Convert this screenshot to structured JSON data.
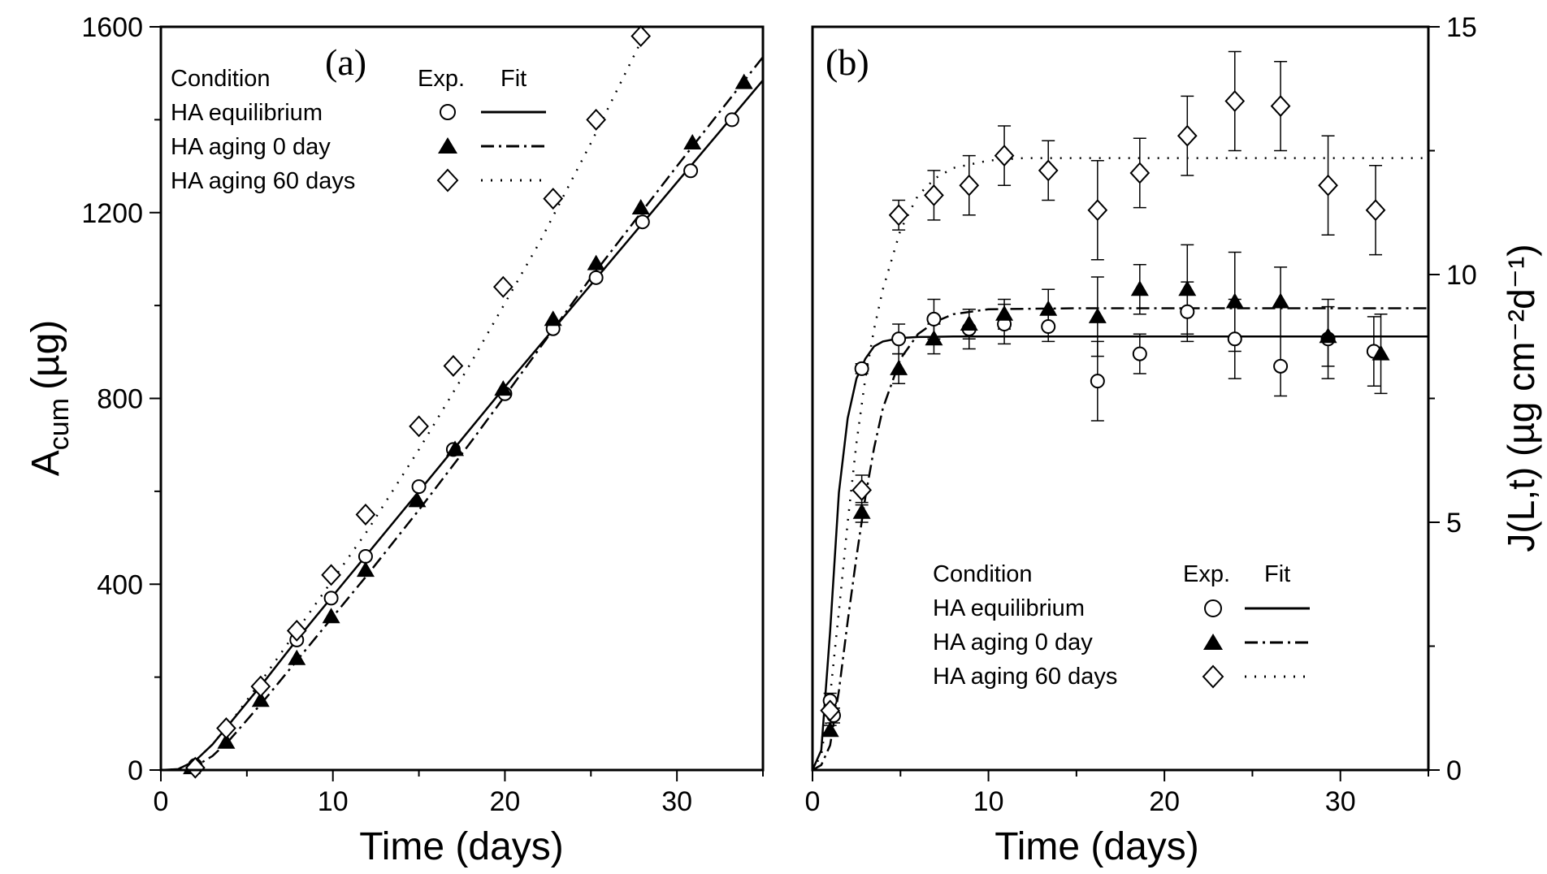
{
  "figure": {
    "panel_labels": [
      "(a)",
      "(b)"
    ]
  },
  "legend_a": {
    "title": "Condition",
    "col_exp": "Exp.",
    "col_fit": "Fit",
    "entries": [
      "HA equilibrium",
      "HA aging 0 day",
      "HA aging 60 days"
    ]
  },
  "legend_b": {
    "title": "Condition",
    "col_exp": "Exp.",
    "col_fit": "Fit",
    "entries": [
      "HA equilibrium",
      "HA aging 0 day",
      "HA aging 60 days"
    ]
  },
  "chart_data": [
    {
      "type": "scatter",
      "panel": "(a)",
      "xlabel": "Time (days)",
      "ylabel": "A",
      "ylabel_sub": "cum",
      "ylabel_unit": "(µg)",
      "xlim": [
        0,
        35
      ],
      "ylim": [
        0,
        1600
      ],
      "xticks": [
        0,
        10,
        20,
        30
      ],
      "yticks": [
        0,
        400,
        800,
        1200,
        1600
      ],
      "legend_position": "top-left",
      "series": [
        {
          "name": "HA equilibrium",
          "marker": "circle-open",
          "line": "solid",
          "x": [
            2,
            3.8,
            5.8,
            7.9,
            9.9,
            11.9,
            15,
            17,
            20,
            22.8,
            25.3,
            28,
            30.8,
            33.2
          ],
          "y": [
            10,
            90,
            180,
            280,
            370,
            460,
            610,
            690,
            810,
            950,
            1060,
            1180,
            1290,
            1400
          ],
          "fit_x": [
            0,
            1,
            2,
            3,
            4,
            6,
            8,
            10,
            12,
            15,
            18,
            20,
            25,
            30,
            35
          ],
          "fit_y": [
            0,
            2,
            20,
            55,
            100,
            190,
            285,
            375,
            465,
            600,
            735,
            825,
            1045,
            1265,
            1485
          ]
        },
        {
          "name": "HA aging 0 day",
          "marker": "triangle-filled",
          "line": "dashdot",
          "x": [
            1.8,
            3.8,
            5.8,
            7.9,
            9.9,
            11.9,
            14.9,
            17.1,
            19.9,
            22.8,
            25.3,
            27.9,
            30.9,
            33.9
          ],
          "y": [
            5,
            60,
            150,
            240,
            330,
            430,
            580,
            690,
            820,
            970,
            1090,
            1210,
            1350,
            1480
          ],
          "fit_x": [
            0,
            1,
            2,
            3,
            4,
            6,
            8,
            10,
            12,
            15,
            18,
            20,
            25,
            30,
            35
          ],
          "fit_y": [
            0,
            0,
            8,
            30,
            65,
            150,
            240,
            330,
            420,
            560,
            705,
            805,
            1060,
            1300,
            1535
          ]
        },
        {
          "name": "HA aging 60 days",
          "marker": "diamond-open",
          "line": "dotted",
          "x": [
            2,
            3.8,
            5.8,
            7.9,
            9.9,
            11.9,
            15,
            17,
            19.9,
            22.8,
            25.3,
            27.9
          ],
          "y": [
            5,
            90,
            180,
            300,
            420,
            550,
            740,
            870,
            1040,
            1230,
            1400,
            1580
          ],
          "fit_x": [
            0,
            1,
            2,
            3,
            4,
            6,
            8,
            10,
            12,
            15,
            18,
            20,
            22,
            25,
            28
          ],
          "fit_y": [
            0,
            2,
            20,
            55,
            100,
            200,
            305,
            410,
            515,
            690,
            875,
            1005,
            1135,
            1350,
            1575
          ]
        }
      ]
    },
    {
      "type": "scatter",
      "panel": "(b)",
      "xlabel": "Time (days)",
      "ylabel": "J(L,t) (µg cm⁻²d⁻¹)",
      "xlim": [
        0,
        35
      ],
      "ylim": [
        0,
        15
      ],
      "xticks": [
        0,
        10,
        20,
        30
      ],
      "yticks": [
        0,
        5,
        10,
        15
      ],
      "y_axis_side": "right",
      "legend_position": "bottom-right",
      "series": [
        {
          "name": "HA equilibrium",
          "marker": "circle-open",
          "line": "solid",
          "x": [
            1,
            1.2,
            2.8,
            4.9,
            6.9,
            8.9,
            10.9,
            13.4,
            16.2,
            18.6,
            21.3,
            24,
            26.6,
            29.3,
            31.9
          ],
          "y": [
            1.4,
            1.1,
            8.1,
            8.7,
            9.1,
            8.9,
            9.0,
            8.95,
            7.85,
            8.4,
            9.25,
            8.7,
            8.15,
            8.7,
            8.45
          ],
          "err": [
            0.15,
            0.15,
            0.1,
            0.3,
            0.4,
            0.4,
            0.4,
            0.3,
            0.8,
            0.4,
            0.6,
            0.8,
            0.6,
            0.8,
            0.7
          ],
          "fit_x": [
            0,
            0.5,
            1,
            1.5,
            2,
            2.5,
            3,
            3.5,
            4,
            5,
            6,
            8,
            10,
            20,
            35
          ],
          "fit_y": [
            0,
            0.4,
            2.8,
            5.6,
            7.1,
            7.9,
            8.3,
            8.55,
            8.65,
            8.72,
            8.74,
            8.75,
            8.75,
            8.75,
            8.75
          ]
        },
        {
          "name": "HA aging 0 day",
          "marker": "triangle-filled",
          "line": "dashdot",
          "x": [
            1,
            2.8,
            4.9,
            6.9,
            8.9,
            10.9,
            13.4,
            16.2,
            18.6,
            21.3,
            24,
            26.6,
            29.3,
            32.3
          ],
          "y": [
            0.8,
            5.2,
            8.1,
            8.7,
            9.0,
            9.2,
            9.3,
            9.15,
            9.7,
            9.7,
            9.45,
            9.45,
            8.75,
            8.4
          ],
          "err": [
            0.1,
            0.2,
            0.3,
            0.3,
            0.3,
            0.3,
            0.4,
            0.8,
            0.5,
            0.9,
            1.0,
            0.7,
            0.6,
            0.8
          ],
          "fit_x": [
            0,
            0.5,
            1,
            1.5,
            2,
            2.5,
            3,
            3.5,
            4,
            5,
            6,
            7,
            8,
            10,
            15,
            20,
            35
          ],
          "fit_y": [
            0,
            0.1,
            0.5,
            1.6,
            3.0,
            4.3,
            5.5,
            6.5,
            7.3,
            8.3,
            8.8,
            9.05,
            9.2,
            9.3,
            9.32,
            9.32,
            9.32
          ]
        },
        {
          "name": "HA aging 60 days",
          "marker": "diamond-open",
          "line": "dotted",
          "x": [
            1,
            2.8,
            4.9,
            6.9,
            8.9,
            10.9,
            13.4,
            16.2,
            18.6,
            21.3,
            24,
            26.6,
            29.3,
            32
          ],
          "y": [
            1.2,
            5.65,
            11.2,
            11.6,
            11.8,
            12.4,
            12.1,
            11.3,
            12.05,
            12.8,
            13.5,
            13.4,
            11.8,
            11.3
          ],
          "err": [
            0.1,
            0.3,
            0.3,
            0.5,
            0.6,
            0.6,
            0.6,
            1.0,
            0.7,
            0.8,
            1.0,
            0.9,
            1.0,
            0.9
          ],
          "fit_x": [
            0,
            0.5,
            1,
            1.5,
            2,
            2.5,
            3,
            3.5,
            4,
            5,
            6,
            7,
            8,
            10,
            12,
            15,
            20,
            35
          ],
          "fit_y": [
            0,
            0.3,
            1.5,
            3.2,
            5.0,
            6.6,
            7.9,
            8.9,
            9.7,
            10.9,
            11.6,
            11.95,
            12.15,
            12.3,
            12.35,
            12.35,
            12.35,
            12.35
          ]
        }
      ]
    }
  ]
}
